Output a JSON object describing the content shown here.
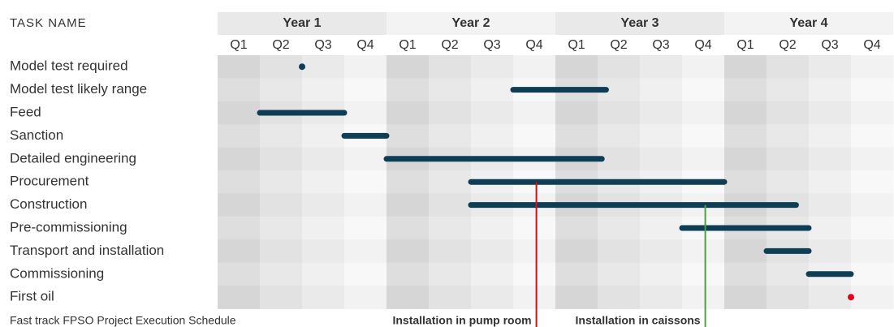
{
  "chart_data": {
    "type": "gantt",
    "header": "TASK NAME",
    "caption": "Fast track FPSO Project Execution Schedule",
    "xlim": [
      0,
      16
    ],
    "bar_color": "#0e3d56",
    "years": [
      {
        "label": "Year 1",
        "quarters": [
          "Q1",
          "Q2",
          "Q3",
          "Q4"
        ]
      },
      {
        "label": "Year 2",
        "quarters": [
          "Q1",
          "Q2",
          "Q3",
          "Q4"
        ]
      },
      {
        "label": "Year 3",
        "quarters": [
          "Q1",
          "Q2",
          "Q3",
          "Q4"
        ]
      },
      {
        "label": "Year 4",
        "quarters": [
          "Q1",
          "Q2",
          "Q3",
          "Q4"
        ]
      }
    ],
    "tasks": [
      {
        "name": "Model test required",
        "at": 2
      },
      {
        "name": "Model test likely range",
        "start": 7,
        "end": 9.2
      },
      {
        "name": "Feed",
        "start": 1,
        "end": 3
      },
      {
        "name": "Sanction",
        "start": 3,
        "end": 4
      },
      {
        "name": "Detailed engineering",
        "start": 4,
        "end": 9.1
      },
      {
        "name": "Procurement",
        "start": 6,
        "end": 12,
        "marker": {
          "label": "Installation in pump room",
          "value": 7.55,
          "color": "#d0101b"
        }
      },
      {
        "name": "Construction",
        "start": 6,
        "end": 13.7,
        "marker": {
          "label": "Installation in caissons",
          "value": 11.55,
          "color": "#4aa23c"
        }
      },
      {
        "name": "Pre-commissioning",
        "start": 11,
        "end": 14
      },
      {
        "name": "Transport and installation",
        "start": 13,
        "end": 14
      },
      {
        "name": "Commissioning",
        "start": 14,
        "end": 15
      },
      {
        "name": "First oil",
        "at": 15,
        "color": "#e3001b"
      }
    ]
  }
}
